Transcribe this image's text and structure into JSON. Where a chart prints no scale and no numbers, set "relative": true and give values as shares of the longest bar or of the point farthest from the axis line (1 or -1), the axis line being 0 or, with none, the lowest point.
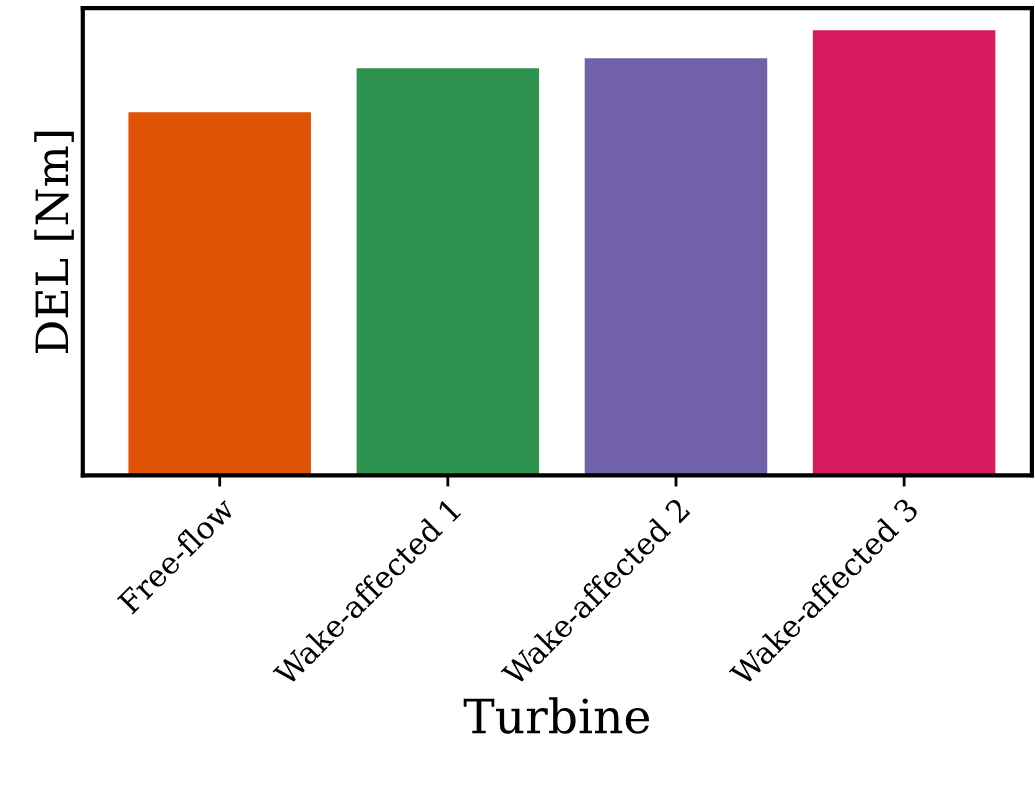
{
  "chart_data": {
    "type": "bar",
    "relative": true,
    "xlabel": "Turbine",
    "ylabel": "DEL [Nm]",
    "categories": [
      "Free-flow",
      "Wake-affected 1",
      "Wake-affected 2",
      "Wake-affected 3"
    ],
    "values": [
      0.816,
      0.915,
      0.937,
      1.0
    ],
    "colors": [
      "#e05206",
      "#2e934f",
      "#7061a8",
      "#d81b60"
    ],
    "grid": false,
    "legend": false
  }
}
